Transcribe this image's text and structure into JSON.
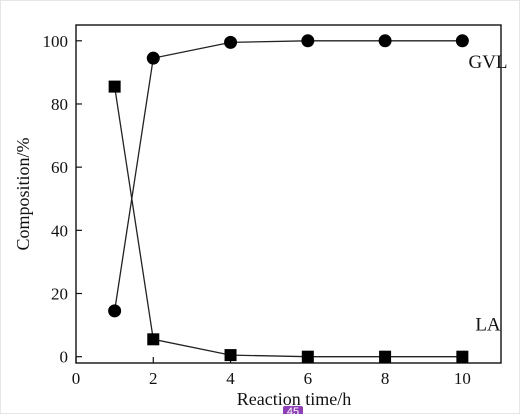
{
  "chart_data": {
    "type": "line",
    "xlabel": "Reaction time/h",
    "ylabel": "Composition/%",
    "xlim": [
      0,
      11
    ],
    "ylim": [
      -2,
      105
    ],
    "x_ticks": [
      0,
      2,
      4,
      6,
      8,
      10
    ],
    "y_ticks": [
      0,
      20,
      40,
      60,
      80,
      100
    ],
    "grid": false,
    "series": [
      {
        "name": "GVL",
        "marker": "circle",
        "x": [
          1,
          2,
          4,
          6,
          8,
          10
        ],
        "y": [
          14.5,
          94.5,
          99.5,
          100,
          100,
          100
        ]
      },
      {
        "name": "LA",
        "marker": "square",
        "x": [
          1,
          2,
          4,
          6,
          8,
          10
        ],
        "y": [
          85.5,
          5.5,
          0.5,
          0,
          0,
          0
        ]
      }
    ]
  },
  "overlay": {
    "badge_text": "45",
    "badge_color": "#8e3fb8"
  }
}
